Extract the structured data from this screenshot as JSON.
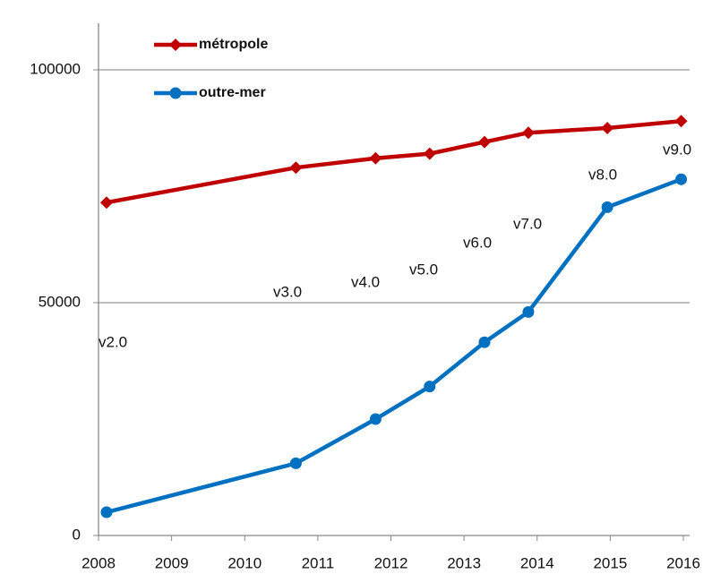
{
  "chart_data": {
    "type": "line",
    "x": [
      2008.11,
      2010.7,
      2011.79,
      2012.53,
      2013.28,
      2013.88,
      2014.96,
      2015.97
    ],
    "series": [
      {
        "name": "métropole",
        "color": "#c00000",
        "marker": "diamond",
        "values": [
          71500,
          79000,
          81000,
          82000,
          84500,
          86500,
          87500,
          89000
        ]
      },
      {
        "name": "outre-mer",
        "color": "#0070c0",
        "marker": "circle",
        "values": [
          5000,
          15500,
          25000,
          32000,
          41500,
          48000,
          70500,
          76500
        ]
      }
    ],
    "annotations": [
      "v2.0",
      "v3.0",
      "v4.0",
      "v5.0",
      "v6.0",
      "v7.0",
      "v8.0",
      "v9.0"
    ],
    "xlim": [
      2008,
      2016
    ],
    "xticks": [
      2008,
      2009,
      2010,
      2011,
      2012,
      2013,
      2014,
      2015,
      2016
    ],
    "ylim": [
      0,
      110000
    ],
    "yticks": [
      0,
      50000,
      100000
    ],
    "grid": true,
    "legend": "top-left"
  }
}
